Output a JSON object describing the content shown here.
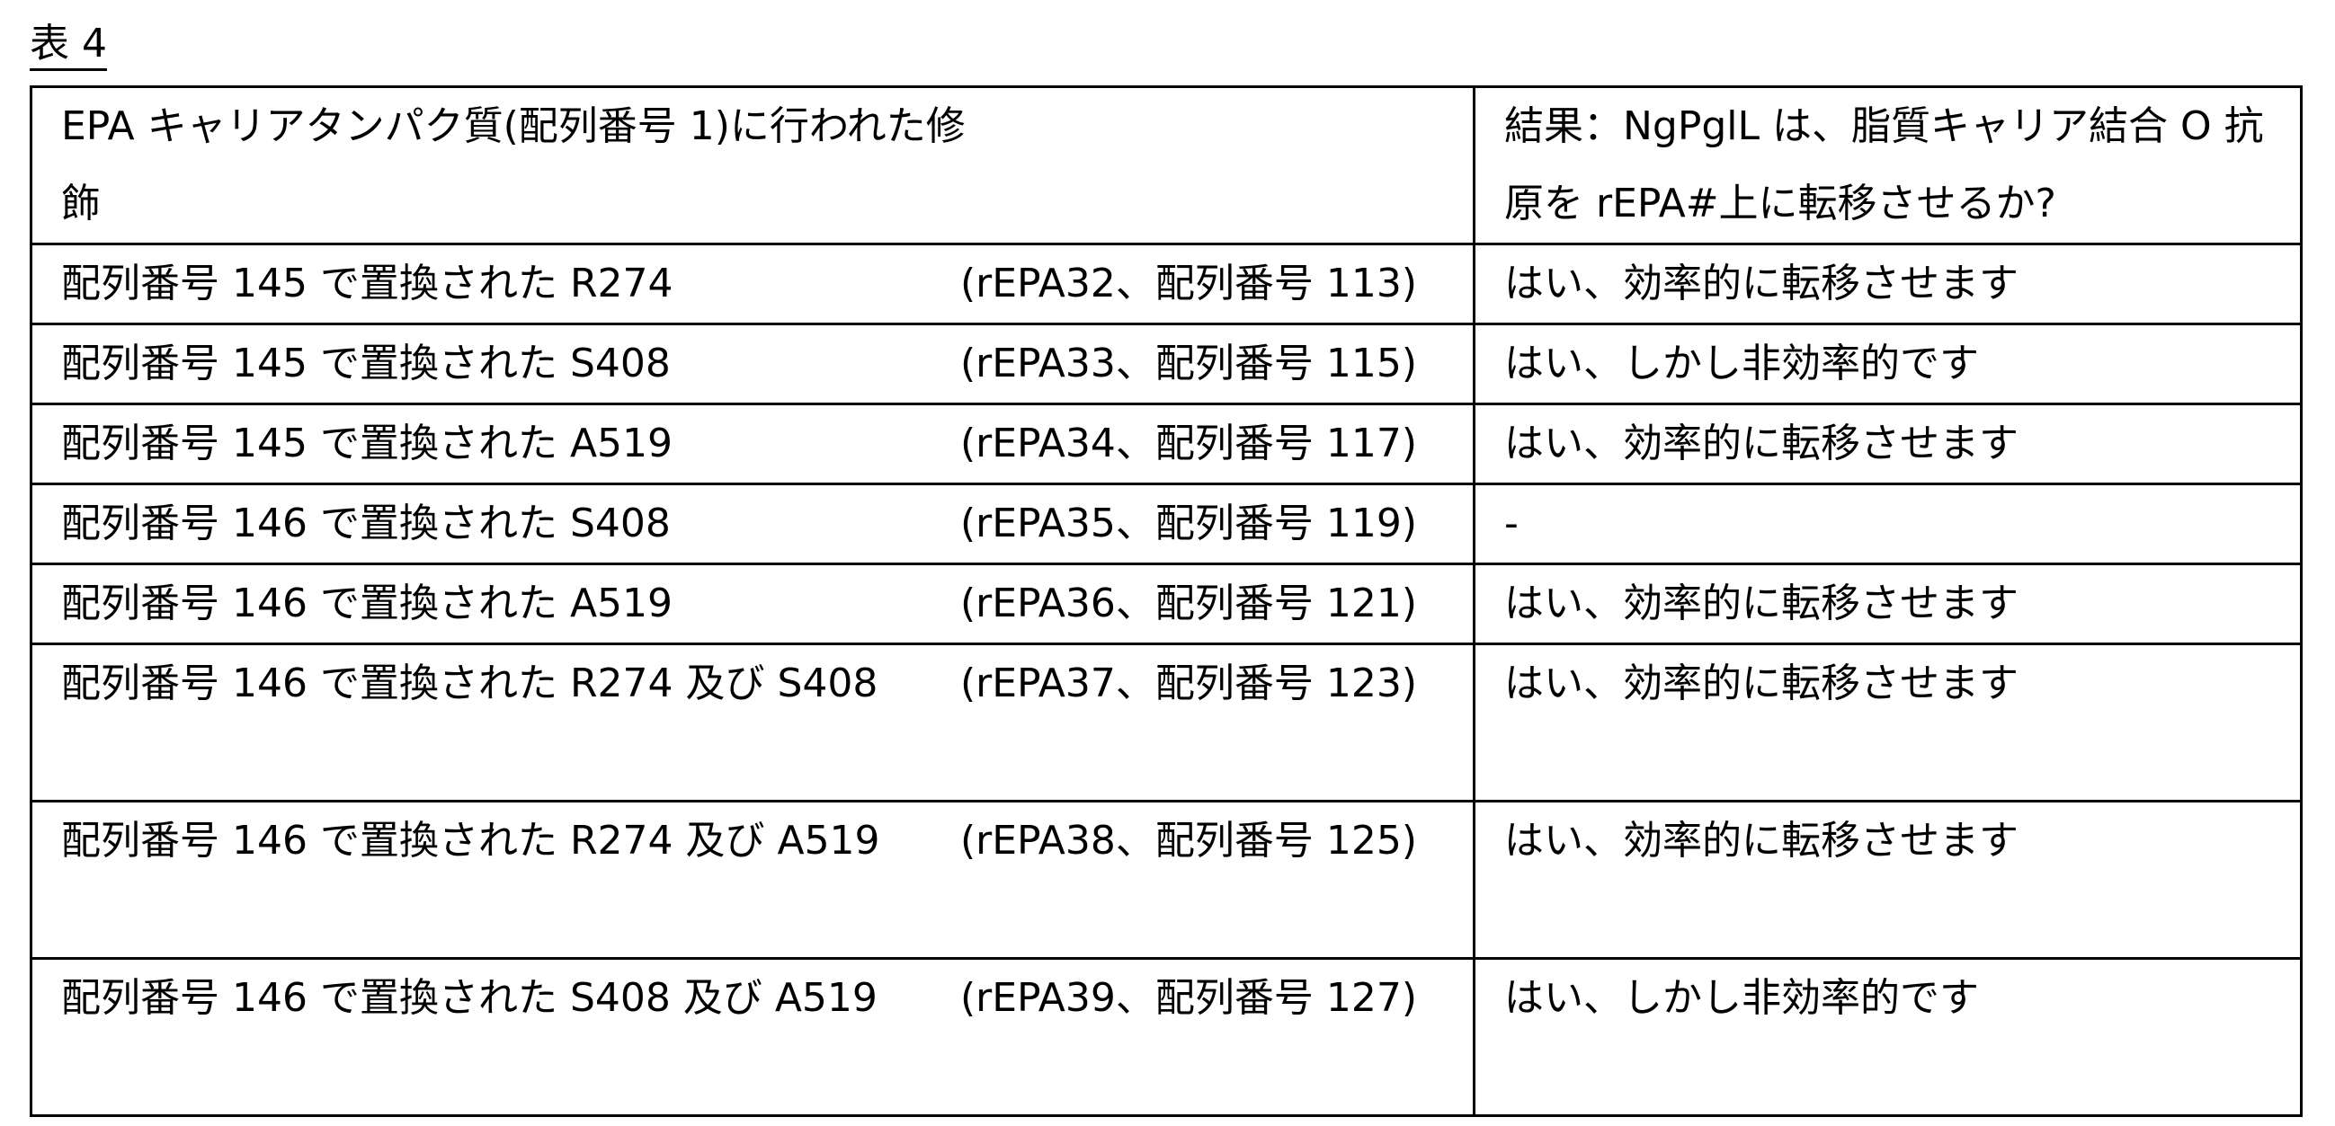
{
  "title": "表 4",
  "header": {
    "modification": "EPA キャリアタンパク質(配列番号 1)に行われた修飾",
    "result": "結果：NgPglL は、脂質キャリア結合 O 抗原を rEPA#上に転移させるか?"
  },
  "rows": [
    {
      "modification": "配列番号 145 で置換された R274",
      "reference": "(rEPA32、配列番号 113)",
      "result": "はい、効率的に転移させます"
    },
    {
      "modification": "配列番号 145 で置換された S408",
      "reference": "(rEPA33、配列番号 115)",
      "result": "はい、しかし非効率的です"
    },
    {
      "modification": "配列番号 145 で置換された A519",
      "reference": "(rEPA34、配列番号 117)",
      "result": "はい、効率的に転移させます"
    },
    {
      "modification": "配列番号 146 で置換された S408",
      "reference": "(rEPA35、配列番号 119)",
      "result": "-"
    },
    {
      "modification": "配列番号 146 で置換された A519",
      "reference": "(rEPA36、配列番号 121)",
      "result": "はい、効率的に転移させます"
    },
    {
      "modification": "配列番号 146 で置換された R274 及び S408",
      "reference": "(rEPA37、配列番号 123)",
      "result": "はい、効率的に転移させます"
    },
    {
      "modification": "配列番号 146 で置換された R274 及び A519",
      "reference": "(rEPA38、配列番号 125)",
      "result": "はい、効率的に転移させます"
    },
    {
      "modification": "配列番号 146 で置換された S408 及び A519",
      "reference": "(rEPA39、配列番号 127)",
      "result": "はい、しかし非効率的です"
    }
  ]
}
